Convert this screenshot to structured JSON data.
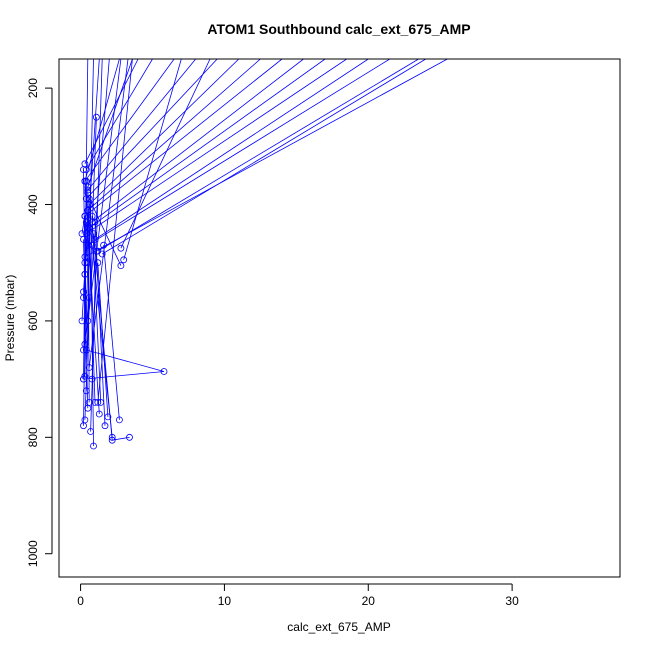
{
  "chart_data": {
    "type": "line",
    "title": "ATOM1 Southbound calc_ext_675_AMP",
    "xlabel": "calc_ext_675_AMP",
    "ylabel": "Pressure (mbar)",
    "xlim": [
      -1.5,
      37.5
    ],
    "ylim": [
      1040,
      150
    ],
    "y_reversed": true,
    "x_ticks": [
      0,
      10,
      20,
      30
    ],
    "y_ticks": [
      200,
      400,
      600,
      800,
      1000
    ],
    "series_color": "#0000ff",
    "marker": "open-circle",
    "grid": false,
    "legend": "none",
    "profiles": [
      {
        "points": [
          [
            0.3,
            330
          ],
          [
            4.0,
            150
          ]
        ]
      },
      {
        "points": [
          [
            0.4,
            340
          ],
          [
            5.0,
            150
          ]
        ]
      },
      {
        "points": [
          [
            0.3,
            360
          ],
          [
            6.5,
            150
          ]
        ]
      },
      {
        "points": [
          [
            0.5,
            375
          ],
          [
            8.0,
            150
          ]
        ]
      },
      {
        "points": [
          [
            0.4,
            390
          ],
          [
            9.5,
            150
          ]
        ]
      },
      {
        "points": [
          [
            0.6,
            400
          ],
          [
            11.0,
            150
          ]
        ]
      },
      {
        "points": [
          [
            0.5,
            410
          ],
          [
            12.5,
            150
          ]
        ]
      },
      {
        "points": [
          [
            0.3,
            420
          ],
          [
            14.0,
            150
          ]
        ]
      },
      {
        "points": [
          [
            0.8,
            430
          ],
          [
            15.5,
            150
          ]
        ]
      },
      {
        "points": [
          [
            0.6,
            440
          ],
          [
            17.0,
            150
          ]
        ]
      },
      {
        "points": [
          [
            0.4,
            450
          ],
          [
            18.5,
            150
          ]
        ]
      },
      {
        "points": [
          [
            1.0,
            460
          ],
          [
            20.0,
            150
          ]
        ]
      },
      {
        "points": [
          [
            0.5,
            470
          ],
          [
            21.5,
            150
          ]
        ]
      },
      {
        "points": [
          [
            1.2,
            480
          ],
          [
            23.5,
            150
          ]
        ]
      },
      {
        "points": [
          [
            0.3,
            490
          ],
          [
            25.5,
            150
          ]
        ]
      },
      {
        "points": [
          [
            2.8,
            475
          ],
          [
            9.0,
            150
          ]
        ]
      },
      {
        "points": [
          [
            3.0,
            495
          ],
          [
            7.0,
            150
          ]
        ]
      },
      {
        "points": [
          [
            1.5,
            485
          ],
          [
            24.0,
            150
          ]
        ]
      },
      {
        "points": [
          [
            0.3,
            520
          ],
          [
            0.5,
            150
          ]
        ]
      },
      {
        "points": [
          [
            0.2,
            560
          ],
          [
            1.3,
            150
          ]
        ]
      },
      {
        "points": [
          [
            0.5,
            600
          ],
          [
            2.0,
            150
          ]
        ]
      },
      {
        "points": [
          [
            0.3,
            640
          ],
          [
            2.8,
            150
          ]
        ]
      },
      {
        "points": [
          [
            0.6,
            680
          ],
          [
            3.3,
            150
          ]
        ]
      },
      {
        "points": [
          [
            0.8,
            700
          ],
          [
            1.5,
            150
          ]
        ]
      },
      {
        "points": [
          [
            0.4,
            720
          ],
          [
            0.9,
            150
          ]
        ]
      },
      {
        "points": [
          [
            1.2,
            740
          ],
          [
            3.6,
            150
          ]
        ]
      },
      {
        "points": [
          [
            0.3,
            770
          ],
          [
            1.1,
            250
          ]
        ]
      },
      {
        "points": [
          [
            1.3,
            760
          ],
          [
            0.3,
            360
          ],
          [
            2.7,
            150
          ]
        ]
      },
      {
        "points": [
          [
            0.2,
            700
          ],
          [
            5.8,
            687
          ],
          [
            0.4,
            650
          ],
          [
            0.3,
            420
          ]
        ]
      },
      {
        "points": [
          [
            0.6,
            740
          ],
          [
            0.5,
            370
          ],
          [
            3.6,
            150
          ]
        ]
      },
      {
        "points": [
          [
            1.7,
            780
          ],
          [
            1.0,
            430
          ]
        ]
      },
      {
        "points": [
          [
            2.2,
            800
          ],
          [
            0.8,
            470
          ]
        ]
      },
      {
        "points": [
          [
            3.4,
            800
          ],
          [
            2.2,
            805
          ],
          [
            0.9,
            450
          ]
        ]
      },
      {
        "points": [
          [
            2.7,
            770
          ],
          [
            1.6,
            470
          ]
        ]
      },
      {
        "points": [
          [
            0.9,
            815
          ],
          [
            0.7,
            400
          ]
        ]
      },
      {
        "points": [
          [
            0.7,
            790
          ],
          [
            1.1,
            480
          ]
        ]
      },
      {
        "points": [
          [
            0.2,
            780
          ],
          [
            0.4,
            430
          ]
        ]
      },
      {
        "points": [
          [
            1.0,
            740
          ],
          [
            0.5,
            380
          ]
        ]
      },
      {
        "points": [
          [
            1.9,
            765
          ],
          [
            1.2,
            500
          ]
        ]
      },
      {
        "points": [
          [
            1.4,
            740
          ],
          [
            0.8,
            420
          ]
        ]
      },
      {
        "points": [
          [
            0.5,
            750
          ],
          [
            0.2,
            460
          ]
        ]
      },
      {
        "points": [
          [
            2.8,
            505
          ],
          [
            0.6,
            390
          ]
        ]
      },
      {
        "points": [
          [
            0.2,
            700
          ],
          [
            0.3,
            500
          ],
          [
            0.2,
            340
          ]
        ]
      },
      {
        "points": [
          [
            0.3,
            695
          ],
          [
            0.5,
            500
          ],
          [
            0.4,
            360
          ]
        ]
      },
      {
        "points": [
          [
            0.1,
            600
          ],
          [
            0.3,
            520
          ]
        ]
      },
      {
        "points": [
          [
            0.2,
            550
          ],
          [
            0.5,
            440
          ]
        ]
      },
      {
        "points": [
          [
            0.1,
            450
          ],
          [
            0.3,
            420
          ]
        ]
      },
      {
        "points": [
          [
            0.2,
            650
          ],
          [
            0.6,
            560
          ]
        ]
      }
    ]
  }
}
